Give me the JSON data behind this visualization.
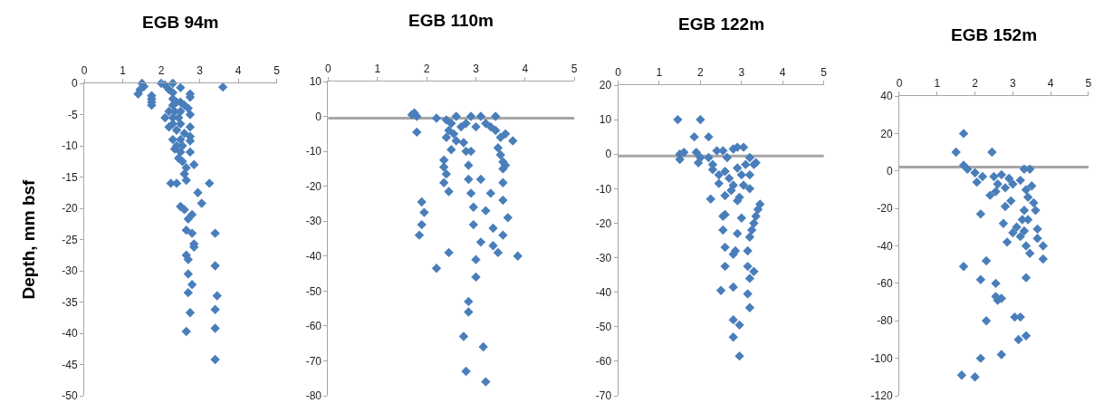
{
  "chart_data": [
    {
      "type": "scatter",
      "title": "EGB 94m",
      "ylabel": "Depth, mm bsf",
      "color": "#4a7ebb",
      "marker": "diamond",
      "grid": false,
      "legend": false,
      "xlim": [
        0,
        5
      ],
      "xticks": [
        0,
        1,
        2,
        3,
        4,
        5
      ],
      "ylim": [
        -50,
        0
      ],
      "yticks": [
        0,
        -5,
        -10,
        -15,
        -20,
        -25,
        -30,
        -35,
        -40,
        -45,
        -50
      ],
      "x": [
        1.5,
        1.55,
        1.45,
        1.4,
        1.75,
        1.75,
        1.75,
        1.75,
        2.0,
        2.1,
        2.3,
        2.2,
        2.3,
        2.5,
        2.75,
        2.75,
        2.3,
        2.4,
        2.3,
        2.5,
        2.6,
        2.7,
        2.2,
        2.35,
        2.5,
        2.1,
        2.3,
        2.45,
        2.75,
        2.3,
        2.5,
        2.2,
        2.75,
        2.4,
        2.6,
        2.75,
        2.3,
        2.5,
        2.75,
        2.4,
        2.55,
        2.35,
        2.5,
        2.75,
        2.45,
        2.55,
        2.85,
        2.65,
        2.6,
        2.65,
        2.25,
        2.4,
        3.25,
        2.95,
        3.05,
        2.5,
        2.6,
        2.8,
        2.7,
        2.65,
        2.8,
        3.4,
        2.85,
        2.85,
        2.65,
        2.7,
        3.4,
        2.7,
        2.8,
        2.7,
        3.45,
        3.4,
        2.75,
        3.4,
        2.65,
        3.4,
        3.6
      ],
      "values": [
        0,
        -0.5,
        -1,
        -1.7,
        -2,
        -2.5,
        -3,
        -3.5,
        0,
        -0.3,
        0,
        -1,
        -1.5,
        -0.7,
        -1.7,
        -2.2,
        -2.5,
        -3,
        -3.5,
        -3,
        -3.5,
        -4,
        -4.5,
        -4.5,
        -4.5,
        -5.5,
        -5.5,
        -5.5,
        -5,
        -6.5,
        -6.5,
        -7,
        -7,
        -7.5,
        -8,
        -8.5,
        -9,
        -9,
        -9.2,
        -10,
        -10,
        -10.5,
        -11,
        -11,
        -12,
        -12.5,
        -13,
        -13.5,
        -14.5,
        -15.5,
        -16,
        -16,
        -16,
        -17.5,
        -19.2,
        -19.7,
        -20.2,
        -21,
        -21.7,
        -23.5,
        -24,
        -24,
        -25.7,
        -26.2,
        -27.5,
        -28.2,
        -29.2,
        -30.5,
        -32.2,
        -33.5,
        -34,
        -36.2,
        -36.7,
        -39.2,
        -39.7,
        -44.2,
        -0.6
      ]
    },
    {
      "type": "scatter",
      "title": "EGB 110m",
      "color": "#4a7ebb",
      "marker": "diamond",
      "grid": false,
      "legend": false,
      "xlim": [
        0,
        5
      ],
      "xticks": [
        0,
        1,
        2,
        3,
        4,
        5
      ],
      "ylim": [
        -80,
        10
      ],
      "yticks": [
        10,
        0,
        -10,
        -20,
        -30,
        -40,
        -50,
        -60,
        -70,
        -80
      ],
      "ref_lines": [
        {
          "axis": "y",
          "value": -0.5,
          "color": "#a6a6a6"
        }
      ],
      "x": [
        1.7,
        1.75,
        1.8,
        1.8,
        2.2,
        2.4,
        2.5,
        2.6,
        2.45,
        2.55,
        2.7,
        2.6,
        2.5,
        2.4,
        2.8,
        2.9,
        3.0,
        3.1,
        3.2,
        3.3,
        3.4,
        3.4,
        3.5,
        3.6,
        3.45,
        3.5,
        3.55,
        3.6,
        3.55,
        3.75,
        2.75,
        2.8,
        2.9,
        2.35,
        2.35,
        2.4,
        2.35,
        2.45,
        2.85,
        2.85,
        3.1,
        2.9,
        3.3,
        3.55,
        3.55,
        2.95,
        3.2,
        1.9,
        1.95,
        1.9,
        1.85,
        2.95,
        3.35,
        3.65,
        3.55,
        3.1,
        3.35,
        3.45,
        2.45,
        3.85,
        3.0,
        2.2,
        3.0,
        2.85,
        2.85,
        2.75,
        3.15,
        2.8,
        3.2
      ],
      "values": [
        0.5,
        1,
        0,
        -4.5,
        -0.5,
        -1,
        -2,
        0,
        -4,
        -5,
        -3,
        -7,
        -9.5,
        -6,
        -2,
        0,
        -3,
        0,
        -2,
        -3,
        0,
        -4,
        -6,
        -5,
        -9,
        -11,
        -13,
        -14,
        -15,
        -7,
        -7.5,
        -10,
        -10,
        -12.5,
        -14.5,
        -16.5,
        -19,
        -21.5,
        -14,
        -18,
        -18,
        -22,
        -22,
        -19,
        -24,
        -26,
        -27,
        -24.5,
        -27.5,
        -31,
        -34,
        -31,
        -32,
        -29,
        -34,
        -36,
        -37,
        -39,
        -39,
        -40,
        -41,
        -43.5,
        -46,
        -53,
        -56,
        -63,
        -66,
        -73,
        -76
      ]
    },
    {
      "type": "scatter",
      "title": "EGB 122m",
      "color": "#4a7ebb",
      "marker": "diamond",
      "grid": false,
      "legend": false,
      "xlim": [
        0,
        5
      ],
      "xticks": [
        0,
        1,
        2,
        3,
        4,
        5
      ],
      "ylim": [
        -70,
        20
      ],
      "yticks": [
        20,
        10,
        0,
        -10,
        -20,
        -30,
        -40,
        -50,
        -60,
        -70
      ],
      "ref_lines": [
        {
          "axis": "y",
          "value": -0.5,
          "color": "#a6a6a6"
        }
      ],
      "x": [
        1.45,
        2.0,
        1.85,
        2.2,
        1.5,
        1.6,
        1.5,
        1.9,
        2.0,
        1.95,
        2.2,
        2.3,
        2.4,
        2.55,
        2.65,
        2.8,
        2.9,
        3.05,
        2.3,
        2.45,
        2.45,
        2.6,
        2.7,
        2.8,
        2.75,
        2.9,
        3.0,
        3.1,
        3.2,
        3.3,
        3.35,
        3.2,
        3.05,
        3.2,
        2.25,
        2.6,
        2.95,
        2.9,
        3.45,
        3.4,
        3.35,
        3.3,
        3.25,
        3.2,
        2.6,
        2.55,
        3.0,
        2.55,
        2.9,
        2.6,
        3.15,
        2.85,
        2.8,
        2.6,
        3.15,
        3.3,
        3.2,
        2.5,
        2.8,
        3.15,
        3.2,
        2.8,
        2.95,
        2.8,
        2.95
      ],
      "values": [
        10,
        10,
        5,
        5,
        0,
        0.5,
        -1.5,
        0.5,
        -1,
        -2.5,
        -1,
        -3,
        1,
        1,
        -1,
        1.5,
        2,
        2,
        -4.5,
        -6,
        -8.5,
        -5,
        -7,
        -9,
        -10.5,
        -4,
        -6,
        -3,
        -1,
        -3,
        -2.5,
        -6,
        -9,
        -10,
        -13,
        -12,
        -12.5,
        -13.5,
        -14.5,
        -16,
        -18,
        -20,
        -22,
        -24,
        -17.5,
        -18,
        -18.5,
        -22,
        -23,
        -27,
        -28,
        -28,
        -29,
        -32.5,
        -32.5,
        -34,
        -36,
        -39.5,
        -38.5,
        -40.5,
        -44.5,
        -48,
        -49.5,
        -53,
        -58.5
      ]
    },
    {
      "type": "scatter",
      "title": "EGB 152m",
      "color": "#4a7ebb",
      "marker": "diamond",
      "grid": false,
      "legend": false,
      "xlim": [
        0,
        5
      ],
      "xticks": [
        0,
        1,
        2,
        3,
        4,
        5
      ],
      "ylim": [
        -120,
        40
      ],
      "yticks": [
        40,
        20,
        0,
        -20,
        -40,
        -60,
        -80,
        -100,
        -120
      ],
      "ref_lines": [
        {
          "axis": "y",
          "value": 2,
          "color": "#a6a6a6"
        }
      ],
      "x": [
        1.7,
        1.5,
        2.45,
        1.7,
        1.8,
        2.0,
        2.2,
        2.05,
        2.5,
        2.7,
        2.9,
        3.0,
        2.6,
        2.8,
        2.4,
        2.55,
        3.3,
        3.45,
        3.2,
        3.35,
        3.5,
        3.4,
        3.55,
        2.95,
        2.8,
        3.3,
        3.6,
        3.25,
        3.4,
        2.75,
        3.1,
        3.3,
        3.65,
        3.0,
        3.2,
        3.65,
        2.85,
        3.35,
        3.45,
        3.8,
        3.8,
        2.15,
        1.7,
        2.3,
        2.15,
        2.55,
        3.35,
        2.55,
        2.6,
        2.7,
        2.3,
        3.05,
        3.2,
        3.15,
        3.35,
        2.7,
        2.15,
        1.65,
        2.0
      ],
      "values": [
        20,
        10,
        10,
        3,
        1,
        -1,
        -3,
        -6,
        -3,
        -2,
        -4,
        -7,
        -7,
        -9,
        -13,
        -11,
        1,
        1,
        -5,
        -10,
        -8,
        -14,
        -17,
        -16,
        -19,
        -21,
        -21,
        -26,
        -26,
        -28,
        -30,
        -32,
        -31,
        -33,
        -35,
        -36,
        -38,
        -40,
        -44,
        -40,
        -47,
        -23,
        -51,
        -48,
        -58,
        -60,
        -57,
        -67,
        -69,
        -68,
        -80,
        -78,
        -78,
        -90,
        -88,
        -98,
        -100,
        -109,
        -110
      ]
    }
  ]
}
